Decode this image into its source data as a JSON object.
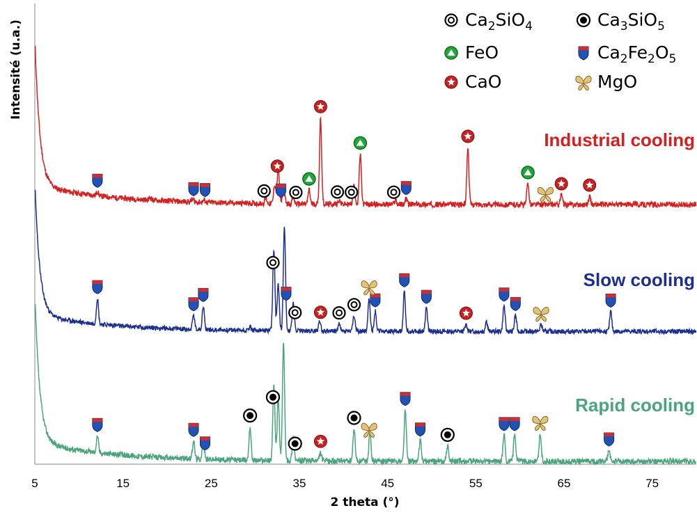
{
  "chart_data": {
    "type": "line",
    "xlabel": "2 theta (°)",
    "ylabel": "Intensité (u.a.)",
    "xlim": [
      5,
      80
    ],
    "x_ticks": [
      5,
      15,
      25,
      35,
      45,
      55,
      65,
      75
    ],
    "grid": false,
    "legend_position": "top-right",
    "series": [
      {
        "name": "Industrial cooling",
        "color": "#d42020",
        "peaks": [
          {
            "x": 12.1,
            "h": 3
          },
          {
            "x": 18.1,
            "h": 2
          },
          {
            "x": 22.9,
            "h": 2
          },
          {
            "x": 24.2,
            "h": 1.5
          },
          {
            "x": 31.2,
            "h": 4
          },
          {
            "x": 32.2,
            "h": 14
          },
          {
            "x": 32.6,
            "h": 26
          },
          {
            "x": 33.2,
            "h": 13
          },
          {
            "x": 34.3,
            "h": 5
          },
          {
            "x": 36.1,
            "h": 10
          },
          {
            "x": 37.4,
            "h": 62
          },
          {
            "x": 39.5,
            "h": 3
          },
          {
            "x": 41.2,
            "h": 14
          },
          {
            "x": 41.9,
            "h": 36
          },
          {
            "x": 45.9,
            "h": 3
          },
          {
            "x": 47.1,
            "h": 4
          },
          {
            "x": 54.1,
            "h": 41
          },
          {
            "x": 60.9,
            "h": 15
          },
          {
            "x": 64.7,
            "h": 7
          },
          {
            "x": 67.9,
            "h": 6
          },
          {
            "x": 73,
            "h": 2
          }
        ]
      },
      {
        "name": "Slow cooling",
        "color": "#1c2e8f",
        "peaks": [
          {
            "x": 12.1,
            "h": 22
          },
          {
            "x": 23.0,
            "h": 12
          },
          {
            "x": 24.1,
            "h": 20
          },
          {
            "x": 29.4,
            "h": 3
          },
          {
            "x": 32.1,
            "h": 68
          },
          {
            "x": 32.6,
            "h": 40
          },
          {
            "x": 33.3,
            "h": 89
          },
          {
            "x": 34.3,
            "h": 24
          },
          {
            "x": 37.3,
            "h": 9
          },
          {
            "x": 39.5,
            "h": 6
          },
          {
            "x": 41.2,
            "h": 13
          },
          {
            "x": 42.9,
            "h": 28
          },
          {
            "x": 43.6,
            "h": 17
          },
          {
            "x": 46.9,
            "h": 34
          },
          {
            "x": 49.4,
            "h": 20
          },
          {
            "x": 53.9,
            "h": 6
          },
          {
            "x": 56.2,
            "h": 9
          },
          {
            "x": 58.2,
            "h": 22
          },
          {
            "x": 59.5,
            "h": 14
          },
          {
            "x": 62.4,
            "h": 6
          },
          {
            "x": 70.3,
            "h": 17
          }
        ]
      },
      {
        "name": "Rapid cooling",
        "color": "#4aa57e",
        "peaks": [
          {
            "x": 12.1,
            "h": 12
          },
          {
            "x": 23.0,
            "h": 13
          },
          {
            "x": 24.1,
            "h": 14
          },
          {
            "x": 29.4,
            "h": 24
          },
          {
            "x": 32.1,
            "h": 53
          },
          {
            "x": 32.6,
            "h": 45
          },
          {
            "x": 33.2,
            "h": 85
          },
          {
            "x": 34.3,
            "h": 17
          },
          {
            "x": 37.4,
            "h": 6
          },
          {
            "x": 41.2,
            "h": 23
          },
          {
            "x": 43.0,
            "h": 21
          },
          {
            "x": 47.0,
            "h": 37
          },
          {
            "x": 48.7,
            "h": 15
          },
          {
            "x": 51.8,
            "h": 11
          },
          {
            "x": 58.2,
            "h": 19
          },
          {
            "x": 59.4,
            "h": 19
          },
          {
            "x": 62.3,
            "h": 20
          },
          {
            "x": 70.1,
            "h": 8
          }
        ]
      }
    ],
    "markers": [
      {
        "series": "Industrial cooling",
        "phase": "Ca2Fe2O5",
        "x": [
          12.1,
          23.0,
          24.3,
          32.9,
          47.1
        ]
      },
      {
        "series": "Industrial cooling",
        "phase": "Ca2SiO4",
        "x": [
          31.0,
          34.6,
          39.3,
          40.9,
          45.7
        ]
      },
      {
        "series": "Industrial cooling",
        "phase": "FeO",
        "x": [
          36.1,
          41.9,
          60.9
        ]
      },
      {
        "series": "Industrial cooling",
        "phase": "CaO",
        "x": [
          32.5,
          37.4,
          54.1,
          64.7,
          67.9
        ]
      },
      {
        "series": "Industrial cooling",
        "phase": "MgO",
        "x": [
          62.9
        ]
      },
      {
        "series": "Slow cooling",
        "phase": "Ca2Fe2O5",
        "x": [
          12.1,
          23.0,
          24.1,
          33.5,
          43.6,
          46.9,
          49.4,
          58.2,
          59.5,
          70.3
        ]
      },
      {
        "series": "Slow cooling",
        "phase": "Ca2SiO4",
        "x": [
          32.0,
          34.5,
          39.5,
          41.2
        ]
      },
      {
        "series": "Slow cooling",
        "phase": "CaO",
        "x": [
          37.4,
          53.9
        ]
      },
      {
        "series": "Slow cooling",
        "phase": "MgO",
        "x": [
          42.9,
          62.4
        ]
      },
      {
        "series": "Rapid cooling",
        "phase": "Ca2Fe2O5",
        "x": [
          12.1,
          23.0,
          24.3,
          47.0,
          48.7,
          58.2,
          59.4,
          70.1
        ]
      },
      {
        "series": "Rapid cooling",
        "phase": "Ca3SiO5",
        "x": [
          29.4,
          32.0,
          34.5,
          41.2,
          51.8
        ]
      },
      {
        "series": "Rapid cooling",
        "phase": "CaO",
        "x": [
          37.4
        ]
      },
      {
        "series": "Rapid cooling",
        "phase": "MgO",
        "x": [
          42.9,
          62.3
        ]
      }
    ],
    "legend": [
      {
        "phase": "Ca2SiO4",
        "label": "Ca2SiO4"
      },
      {
        "phase": "Ca3SiO5",
        "label": "Ca3SiO5"
      },
      {
        "phase": "FeO",
        "label": "FeO"
      },
      {
        "phase": "Ca2Fe2O5",
        "label": "Ca2Fe2O5"
      },
      {
        "phase": "CaO",
        "label": "CaO"
      },
      {
        "phase": "MgO",
        "label": "MgO"
      }
    ]
  }
}
